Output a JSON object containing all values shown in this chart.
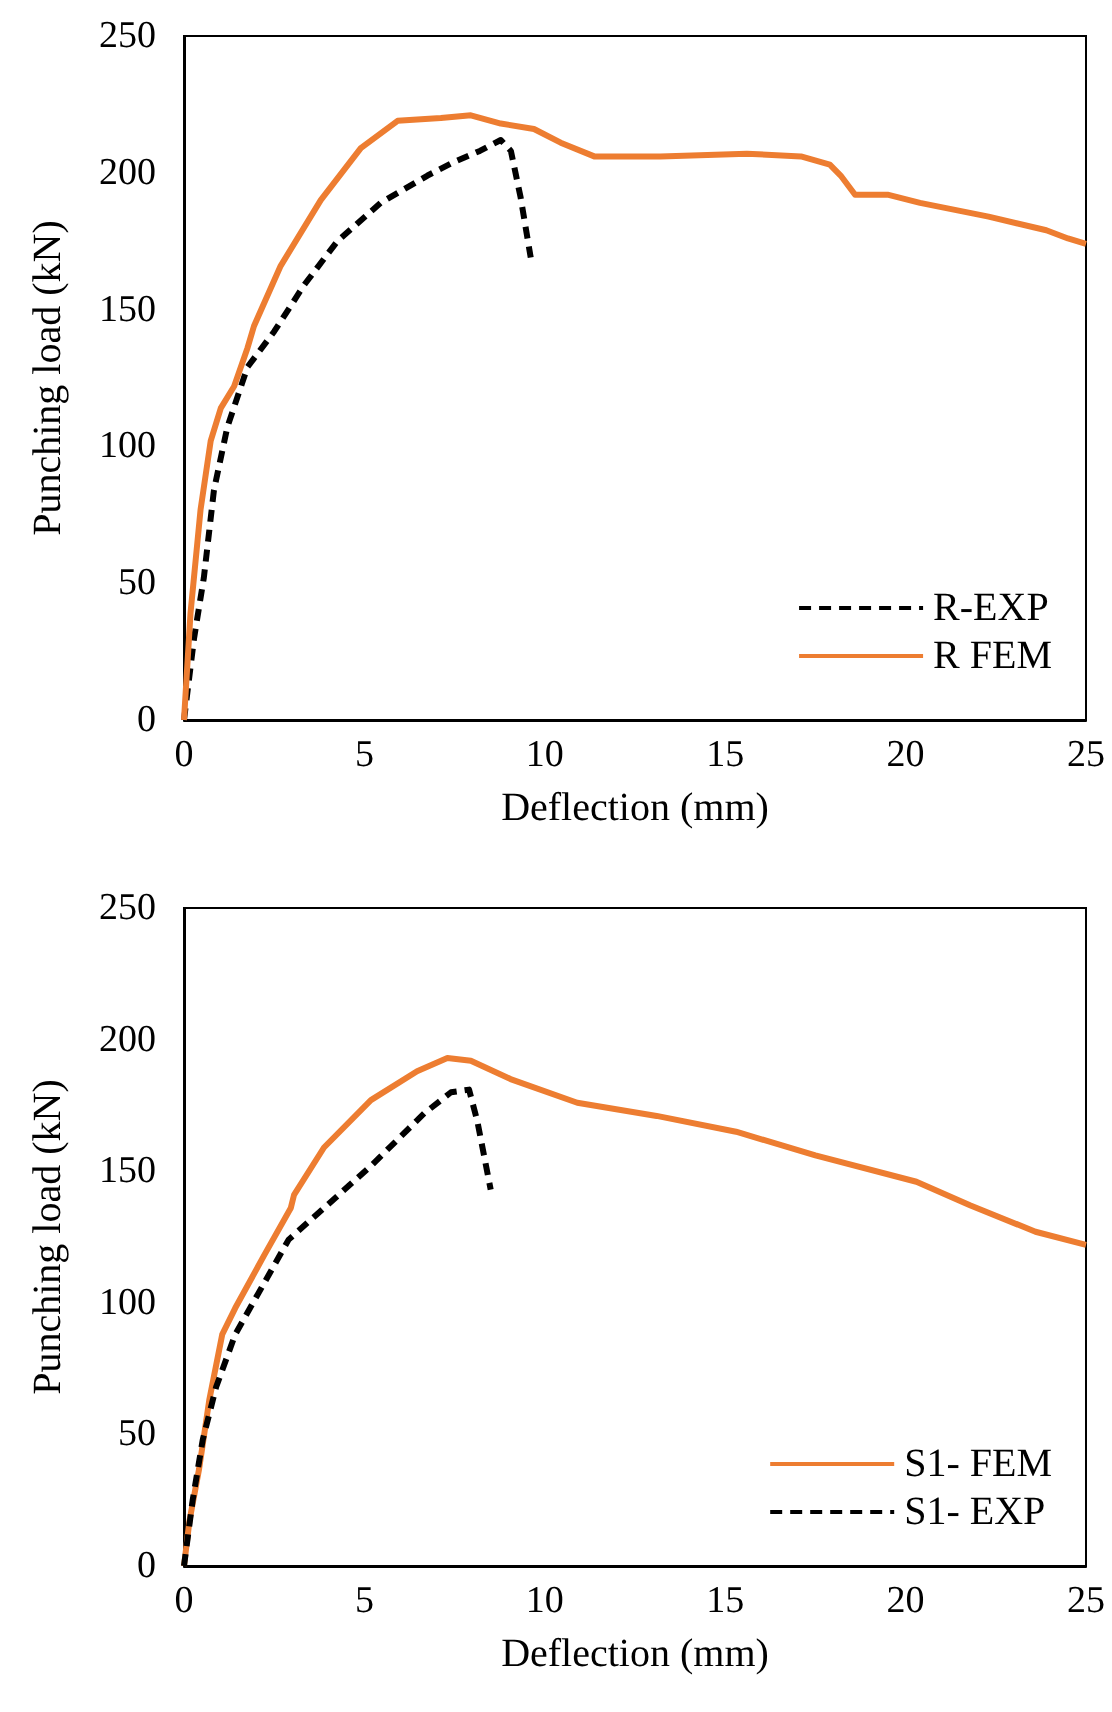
{
  "chart_data": [
    {
      "type": "line",
      "xlabel": "Deflection (mm)",
      "ylabel": "Punching load (kN)",
      "xlim": [
        0,
        25
      ],
      "ylim": [
        0,
        250
      ],
      "xticks": [
        0,
        5,
        10,
        15,
        20,
        25
      ],
      "yticks": [
        0,
        50,
        100,
        150,
        200,
        250
      ],
      "grid": false,
      "legend": "bottom right",
      "series": [
        {
          "name": "R-EXP",
          "color": "#000000",
          "line_style": "dashed",
          "x": [
            0,
            0.28,
            0.55,
            0.83,
            1.2,
            1.76,
            2.5,
            3.33,
            4.25,
            5.45,
            6.75,
            7.49,
            8.2,
            8.78,
            9.06,
            9.33,
            9.61
          ],
          "values": [
            0,
            30,
            52,
            84,
            107,
            129,
            142,
            159,
            175,
            189,
            199,
            204,
            208,
            212,
            208,
            191,
            169
          ]
        },
        {
          "name": "R FEM",
          "color": "#ed7d31",
          "line_style": "solid",
          "x": [
            0,
            0.18,
            0.46,
            0.74,
            1.02,
            1.39,
            1.76,
            1.94,
            2.68,
            3.79,
            4.9,
            5.92,
            7.12,
            7.95,
            8.78,
            9.7,
            10.44,
            11.37,
            13.2,
            15.6,
            17.1,
            17.9,
            18.2,
            18.6,
            19.5,
            20.4,
            22.3,
            23.9,
            24.5,
            25
          ],
          "values": [
            0,
            39,
            77,
            102,
            114,
            122,
            136,
            144,
            166,
            190,
            209,
            219,
            220,
            221,
            218,
            216,
            211,
            206,
            206,
            207,
            206,
            203,
            199,
            192,
            192,
            189,
            184,
            179,
            176,
            174
          ]
        }
      ]
    },
    {
      "type": "line",
      "xlabel": "Deflection (mm)",
      "ylabel": "Punching load (kN)",
      "xlim": [
        0,
        25
      ],
      "ylim": [
        0,
        250
      ],
      "xticks": [
        0,
        5,
        10,
        15,
        20,
        25
      ],
      "yticks": [
        0,
        50,
        100,
        150,
        200,
        250
      ],
      "grid": false,
      "legend": "bottom right",
      "series": [
        {
          "name": "S1- FEM",
          "color": "#ed7d31",
          "line_style": "solid",
          "x": [
            0,
            0.15,
            0.42,
            0.7,
            1.06,
            1.42,
            2.22,
            2.96,
            3.05,
            3.88,
            5.18,
            6.46,
            7.3,
            7.95,
            9.05,
            10.9,
            13.1,
            15.3,
            17.5,
            20.3,
            21.8,
            23.6,
            25
          ],
          "values": [
            0,
            17,
            37,
            63,
            88,
            98,
            118,
            136,
            141,
            159,
            177,
            188,
            193,
            192,
            185,
            176,
            171,
            165,
            156,
            146,
            137,
            127,
            122
          ]
        },
        {
          "name": "S1- EXP",
          "color": "#000000",
          "line_style": "dashed",
          "x": [
            0,
            0.24,
            0.52,
            0.89,
            1.42,
            2.16,
            2.9,
            3.88,
            5.18,
            6.66,
            7.4,
            7.9,
            8.13,
            8.5
          ],
          "values": [
            0,
            25,
            48,
            68,
            88,
            106,
            124,
            136,
            152,
            172,
            180,
            181,
            169,
            143
          ]
        }
      ]
    }
  ]
}
